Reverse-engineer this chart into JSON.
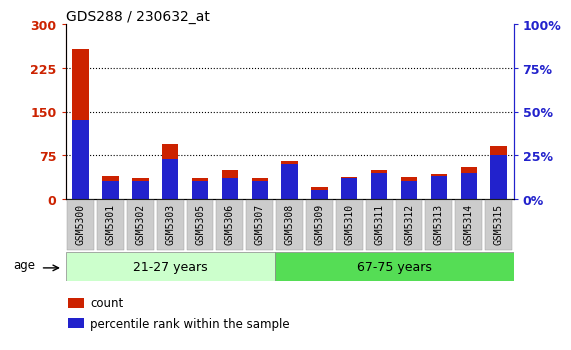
{
  "title": "GDS288 / 230632_at",
  "samples": [
    "GSM5300",
    "GSM5301",
    "GSM5302",
    "GSM5303",
    "GSM5305",
    "GSM5306",
    "GSM5307",
    "GSM5308",
    "GSM5309",
    "GSM5310",
    "GSM5311",
    "GSM5312",
    "GSM5313",
    "GSM5314",
    "GSM5315"
  ],
  "count_values": [
    258,
    40,
    35,
    95,
    35,
    50,
    35,
    65,
    20,
    38,
    50,
    38,
    42,
    55,
    90
  ],
  "percentile_values": [
    45,
    10,
    10,
    23,
    10,
    12,
    10,
    20,
    5,
    12,
    15,
    10,
    13,
    15,
    25
  ],
  "group1_label": "21-27 years",
  "group2_label": "67-75 years",
  "group1_count": 7,
  "group2_count": 8,
  "age_label": "age",
  "left_yticks": [
    0,
    75,
    150,
    225,
    300
  ],
  "right_yticks": [
    0,
    25,
    50,
    75,
    100
  ],
  "right_ylabels": [
    "0%",
    "25%",
    "50%",
    "75%",
    "100%"
  ],
  "ylim_left": [
    0,
    300
  ],
  "ylim_right": [
    0,
    100
  ],
  "bar_color_count": "#cc2200",
  "bar_color_pct": "#2222cc",
  "bar_width": 0.55,
  "background_plot": "#ffffff",
  "background_age_group1": "#ccffcc",
  "background_age_group2": "#55dd55",
  "legend_count_label": "count",
  "legend_pct_label": "percentile rank within the sample",
  "title_color": "#000000",
  "left_axis_color": "#cc2200",
  "right_axis_color": "#2222cc",
  "tick_bg_color": "#cccccc"
}
